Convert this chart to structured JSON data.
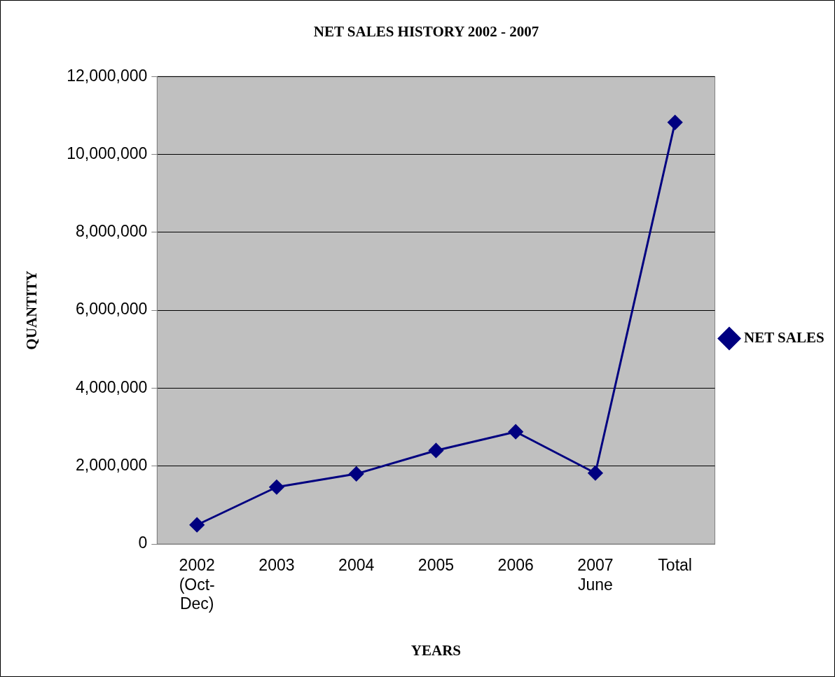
{
  "chart_data": {
    "type": "line",
    "title": "NET SALES HISTORY 2002 - 2007",
    "xlabel": "YEARS",
    "ylabel": "QUANTITY",
    "categories": [
      "2002 (Oct-Dec)",
      "2003",
      "2004",
      "2005",
      "2006",
      "2007 June",
      "Total"
    ],
    "series": [
      {
        "name": "NET SALES",
        "color": "#000080",
        "values": [
          490000,
          1460000,
          1800000,
          2400000,
          2880000,
          1820000,
          10820000
        ]
      }
    ],
    "ylim": [
      0,
      12000000
    ],
    "yticks": [
      0,
      {
        "value": 2000000,
        "label": "2,000,000"
      },
      {
        "value": 4000000,
        "label": "4,000,000"
      },
      {
        "value": 6000000,
        "label": "6,000,000"
      },
      {
        "value": 8000000,
        "label": "8,000,000"
      },
      {
        "value": 10000000,
        "label": "10,000,000"
      },
      {
        "value": 12000000,
        "label": "12,000,000"
      }
    ],
    "grid": "y",
    "legend": "right",
    "marker": "diamond",
    "line_style": "solid"
  }
}
